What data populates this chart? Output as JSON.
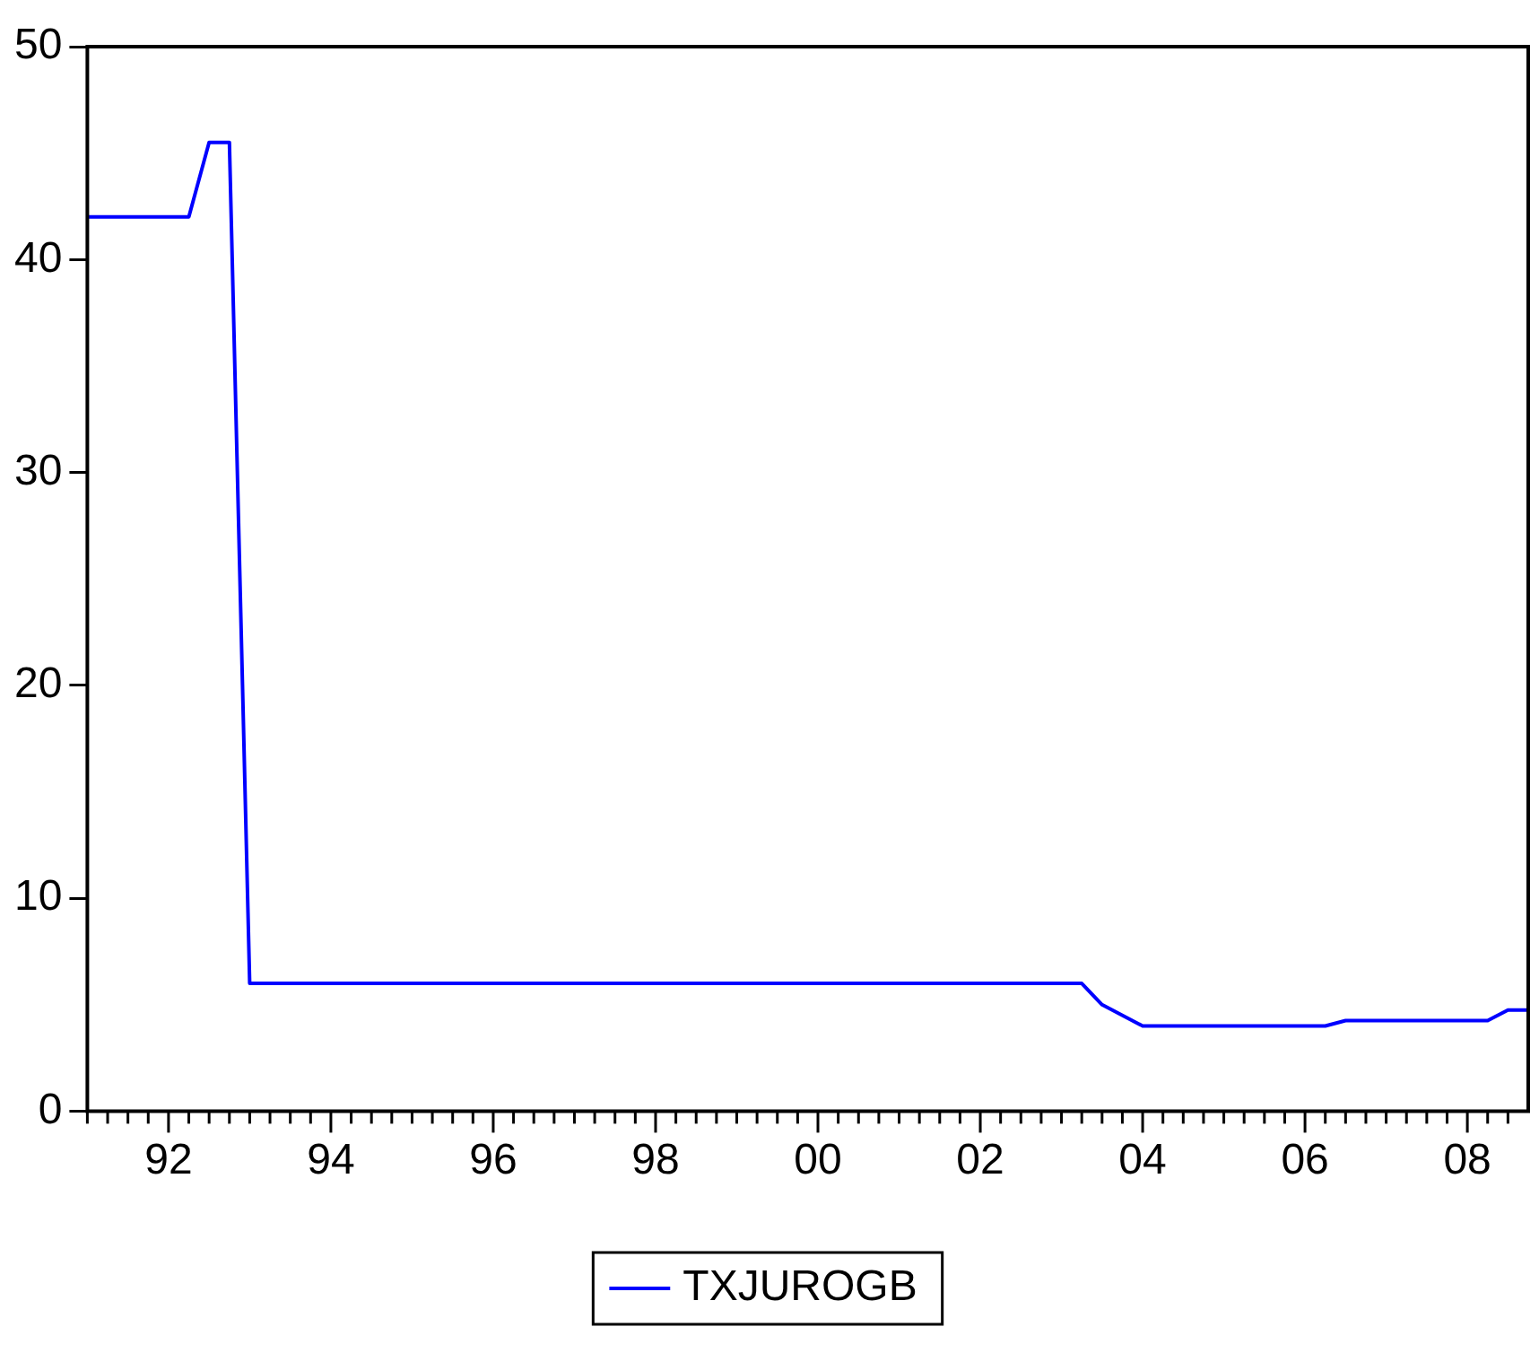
{
  "chart_data": {
    "type": "line",
    "x": [
      1991,
      1992.25,
      1992.5,
      1992.75,
      1993,
      2003.25,
      2003.5,
      2004,
      2006.25,
      2006.5,
      2008.25,
      2008.5,
      2008.75
    ],
    "series": [
      {
        "name": "TXJUROGB",
        "color": "#0000ff",
        "values": [
          42,
          42,
          45.5,
          45.5,
          6,
          6,
          5,
          4,
          4,
          4.25,
          4.25,
          4.75,
          4.75
        ]
      }
    ],
    "xlim": [
      1991,
      2008.75
    ],
    "xticks": [
      {
        "value": 1991,
        "label": null
      },
      {
        "value": 1991.25,
        "label": null
      },
      {
        "value": 1991.5,
        "label": null
      },
      {
        "value": 1991.75,
        "label": null
      },
      {
        "value": 1992,
        "label": "92"
      },
      {
        "value": 1992.25,
        "label": null
      },
      {
        "value": 1992.5,
        "label": null
      },
      {
        "value": 1992.75,
        "label": null
      },
      {
        "value": 1993,
        "label": null
      },
      {
        "value": 1993.25,
        "label": null
      },
      {
        "value": 1993.5,
        "label": null
      },
      {
        "value": 1993.75,
        "label": null
      },
      {
        "value": 1994,
        "label": "94"
      },
      {
        "value": 1994.25,
        "label": null
      },
      {
        "value": 1994.5,
        "label": null
      },
      {
        "value": 1994.75,
        "label": null
      },
      {
        "value": 1995,
        "label": null
      },
      {
        "value": 1995.25,
        "label": null
      },
      {
        "value": 1995.5,
        "label": null
      },
      {
        "value": 1995.75,
        "label": null
      },
      {
        "value": 1996,
        "label": "96"
      },
      {
        "value": 1996.25,
        "label": null
      },
      {
        "value": 1996.5,
        "label": null
      },
      {
        "value": 1996.75,
        "label": null
      },
      {
        "value": 1997,
        "label": null
      },
      {
        "value": 1997.25,
        "label": null
      },
      {
        "value": 1997.5,
        "label": null
      },
      {
        "value": 1997.75,
        "label": null
      },
      {
        "value": 1998,
        "label": "98"
      },
      {
        "value": 1998.25,
        "label": null
      },
      {
        "value": 1998.5,
        "label": null
      },
      {
        "value": 1998.75,
        "label": null
      },
      {
        "value": 1999,
        "label": null
      },
      {
        "value": 1999.25,
        "label": null
      },
      {
        "value": 1999.5,
        "label": null
      },
      {
        "value": 1999.75,
        "label": null
      },
      {
        "value": 2000,
        "label": "00"
      },
      {
        "value": 2000.25,
        "label": null
      },
      {
        "value": 2000.5,
        "label": null
      },
      {
        "value": 2000.75,
        "label": null
      },
      {
        "value": 2001,
        "label": null
      },
      {
        "value": 2001.25,
        "label": null
      },
      {
        "value": 2001.5,
        "label": null
      },
      {
        "value": 2001.75,
        "label": null
      },
      {
        "value": 2002,
        "label": "02"
      },
      {
        "value": 2002.25,
        "label": null
      },
      {
        "value": 2002.5,
        "label": null
      },
      {
        "value": 2002.75,
        "label": null
      },
      {
        "value": 2003,
        "label": null
      },
      {
        "value": 2003.25,
        "label": null
      },
      {
        "value": 2003.5,
        "label": null
      },
      {
        "value": 2003.75,
        "label": null
      },
      {
        "value": 2004,
        "label": "04"
      },
      {
        "value": 2004.25,
        "label": null
      },
      {
        "value": 2004.5,
        "label": null
      },
      {
        "value": 2004.75,
        "label": null
      },
      {
        "value": 2005,
        "label": null
      },
      {
        "value": 2005.25,
        "label": null
      },
      {
        "value": 2005.5,
        "label": null
      },
      {
        "value": 2005.75,
        "label": null
      },
      {
        "value": 2006,
        "label": "06"
      },
      {
        "value": 2006.25,
        "label": null
      },
      {
        "value": 2006.5,
        "label": null
      },
      {
        "value": 2006.75,
        "label": null
      },
      {
        "value": 2007,
        "label": null
      },
      {
        "value": 2007.25,
        "label": null
      },
      {
        "value": 2007.5,
        "label": null
      },
      {
        "value": 2007.75,
        "label": null
      },
      {
        "value": 2008,
        "label": "08"
      },
      {
        "value": 2008.25,
        "label": null
      },
      {
        "value": 2008.5,
        "label": null
      }
    ],
    "ylim": [
      0,
      50
    ],
    "yticks": [
      0,
      10,
      20,
      30,
      40,
      50
    ],
    "legend": "bottom",
    "marker": "none",
    "line_style": "solid"
  }
}
